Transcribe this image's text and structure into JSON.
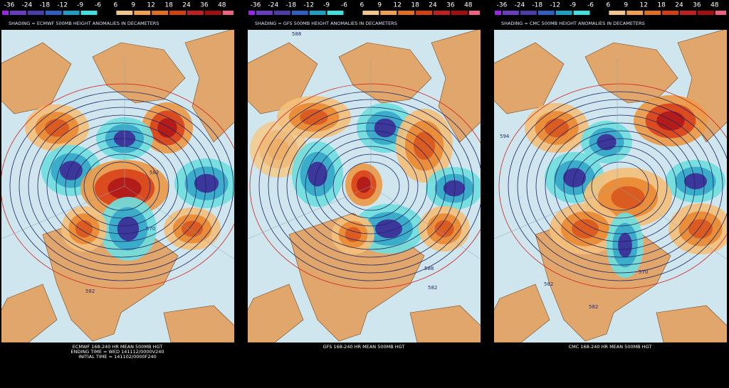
{
  "colorbar": {
    "labels": [
      "-36",
      "-24",
      "-18",
      "-12",
      "-9",
      "-6",
      "6",
      "9",
      "12",
      "18",
      "24",
      "36",
      "48"
    ],
    "colors": [
      "#a020f0",
      "#6a3dbf",
      "#4b3ca8",
      "#2f5fbf",
      "#1f9fc6",
      "#40e0e0",
      "#000000",
      "#f2c68a",
      "#f0a050",
      "#e07020",
      "#d04010",
      "#c02020",
      "#a01010",
      "#f06080"
    ]
  },
  "panels": [
    {
      "shading_title": "SHADING = ECMWF 500MB HEIGHT ANOMALIES IN DECAMETERS",
      "footer": [
        "ECMWF 168-240 HR MEAN 500MB HGT",
        "ENDING TIME = WED 141112/0000V240",
        "INITIAL TIME = 141102/0000F240"
      ],
      "contour_labels": [
        "582",
        "582",
        "570"
      ]
    },
    {
      "shading_title": "SHADING = GFS 500MB HEIGHT ANOMALIES IN DECAMETERS",
      "footer": [
        "GFS 168-240 HR MEAN 500MB HGT"
      ],
      "contour_labels": [
        "588",
        "582",
        "588"
      ]
    },
    {
      "shading_title": "SHADING = CMC 500MB HEIGHT ANOMALIES IN DECAMETERS",
      "footer": [
        "CMC 168-240 HR MEAN 500MB HGT"
      ],
      "contour_labels": [
        "594",
        "582",
        "570",
        "582"
      ]
    }
  ]
}
